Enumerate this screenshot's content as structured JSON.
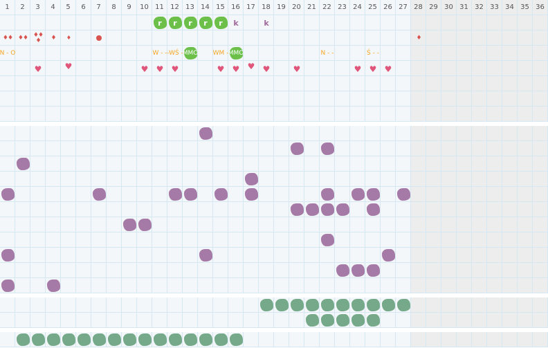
{
  "days": [
    "1",
    "2",
    "3",
    "4",
    "5",
    "6",
    "7",
    "8",
    "9",
    "10",
    "11",
    "12",
    "13",
    "14",
    "15",
    "16",
    "17",
    "18",
    "19",
    "20",
    "21",
    "22",
    "23",
    "24",
    "25",
    "26",
    "27",
    "28",
    "29",
    "30",
    "31",
    "32",
    "33",
    "34",
    "35",
    "36"
  ],
  "inactive_from_day": 28,
  "colors": {
    "green_blob": "#6cc04a",
    "purple_blob": "#a67aa6",
    "teal_blob": "#76a98a",
    "blood": "#d9534f",
    "heart": "#e0557a",
    "text": "#f5a623"
  },
  "section1": {
    "row_markers": [
      {
        "day": 11,
        "type": "green-blob",
        "label": "r"
      },
      {
        "day": 12,
        "type": "green-blob",
        "label": "r"
      },
      {
        "day": 13,
        "type": "green-blob",
        "label": "r"
      },
      {
        "day": 14,
        "type": "green-blob",
        "label": "r"
      },
      {
        "day": 15,
        "type": "green-blob",
        "label": "r"
      },
      {
        "day": 16,
        "type": "letter",
        "label": "k"
      },
      {
        "day": 18,
        "type": "letter",
        "label": "k"
      }
    ],
    "row_bleeding": [
      {
        "day": 1,
        "drops": 2
      },
      {
        "day": 2,
        "drops": 2
      },
      {
        "day": 3,
        "drops": 3
      },
      {
        "day": 4,
        "drops": 1
      },
      {
        "day": 5,
        "drops": 1
      },
      {
        "day": 7,
        "drops": 0,
        "spot": true
      },
      {
        "day": 28,
        "drops": 1
      }
    ],
    "row_notes": [
      {
        "day": 1,
        "label": "N - O"
      },
      {
        "day": 11,
        "label": "W - -"
      },
      {
        "day": 12,
        "label": "-WŚ -"
      },
      {
        "day": 13,
        "label": "MMO",
        "highlight": true
      },
      {
        "day": 15,
        "label": "WM -"
      },
      {
        "day": 16,
        "label": "MMO",
        "highlight": true
      },
      {
        "day": 22,
        "label": "N - -"
      },
      {
        "day": 25,
        "label": "Ś - -"
      }
    ],
    "row_hearts": [
      {
        "day": 3,
        "pos": "low"
      },
      {
        "day": 5,
        "pos": "high"
      },
      {
        "day": 10,
        "pos": "low"
      },
      {
        "day": 11,
        "pos": "low"
      },
      {
        "day": 12,
        "pos": "low"
      },
      {
        "day": 15,
        "pos": "low"
      },
      {
        "day": 16,
        "pos": "low"
      },
      {
        "day": 17,
        "pos": "high"
      },
      {
        "day": 18,
        "pos": "low"
      },
      {
        "day": 20,
        "pos": "low"
      },
      {
        "day": 24,
        "pos": "low"
      },
      {
        "day": 25,
        "pos": "low"
      },
      {
        "day": 26,
        "pos": "low"
      }
    ]
  },
  "section2_rows": [
    [
      14
    ],
    [
      20,
      22
    ],
    [
      2
    ],
    [
      17
    ],
    [
      1,
      7,
      12,
      13,
      15,
      17,
      22,
      24,
      25,
      27
    ],
    [
      20,
      21,
      22,
      23,
      25
    ],
    [
      9,
      10
    ],
    [
      22
    ],
    [
      1,
      14,
      26
    ],
    [
      23,
      24,
      25
    ],
    [
      1,
      4
    ]
  ],
  "section3_rows": [
    [
      18,
      19,
      20,
      21,
      22,
      23,
      24,
      25,
      26,
      27
    ],
    [
      21,
      22,
      23,
      24,
      25
    ]
  ],
  "section4_rows": [
    [
      2,
      3,
      4,
      5,
      6,
      7,
      8,
      9,
      10,
      11,
      12,
      13,
      14,
      15,
      16
    ]
  ]
}
